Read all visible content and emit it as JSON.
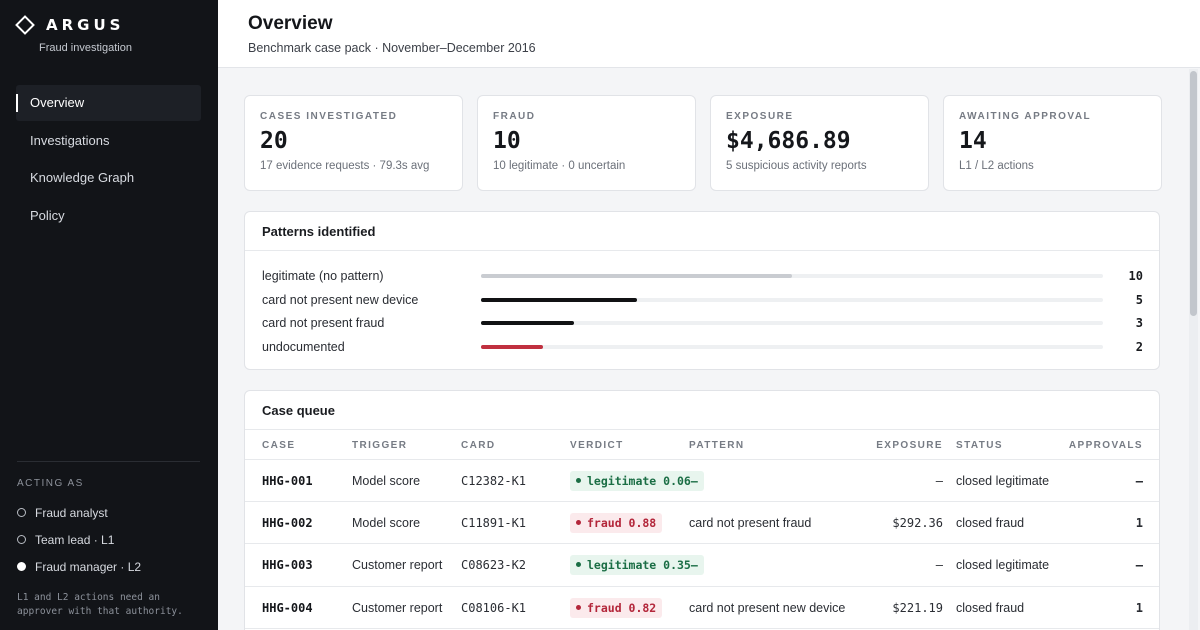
{
  "brand": {
    "name": "ARGUS",
    "subtitle": "Fraud investigation",
    "logo_icon": "diamond-outline-icon"
  },
  "nav": [
    {
      "label": "Overview",
      "active": true
    },
    {
      "label": "Investigations",
      "active": false
    },
    {
      "label": "Knowledge Graph",
      "active": false
    },
    {
      "label": "Policy",
      "active": false
    }
  ],
  "acting_as": {
    "label": "ACTING AS",
    "roles": [
      {
        "label": "Fraud analyst",
        "selected": false
      },
      {
        "label": "Team lead · L1",
        "selected": false
      },
      {
        "label": "Fraud manager · L2",
        "selected": true
      }
    ],
    "note": "L1 and L2 actions need an\napprover with that authority."
  },
  "header": {
    "title": "Overview",
    "subtitle": "Benchmark case pack · November–December 2016"
  },
  "stats": [
    {
      "label": "CASES INVESTIGATED",
      "value": "20",
      "note": "17 evidence requests · 79.3s avg"
    },
    {
      "label": "FRAUD",
      "value": "10",
      "note": "10 legitimate · 0 uncertain"
    },
    {
      "label": "EXPOSURE",
      "value": "$4,686.89",
      "note": "5 suspicious activity reports"
    },
    {
      "label": "AWAITING APPROVAL",
      "value": "14",
      "note": "L1 / L2 actions"
    }
  ],
  "patterns": {
    "title": "Patterns identified",
    "max": 20,
    "items": [
      {
        "label": "legitimate (no pattern)",
        "count": 10,
        "color": "#c9ccd1"
      },
      {
        "label": "card not present new device",
        "count": 5,
        "color": "#111214"
      },
      {
        "label": "card not present fraud",
        "count": 3,
        "color": "#111214"
      },
      {
        "label": "undocumented",
        "count": 2,
        "color": "#c0303f"
      }
    ]
  },
  "queue": {
    "title": "Case queue",
    "columns": {
      "case": "CASE",
      "trigger": "TRIGGER",
      "card": "CARD",
      "verdict": "VERDICT",
      "pattern": "PATTERN",
      "exposure": "EXPOSURE",
      "status": "STATUS",
      "approvals": "APPROVALS"
    },
    "rows": [
      {
        "case": "HHG-001",
        "trigger": "Model score",
        "card": "C12382-K1",
        "verdict": "legitimate 0.06",
        "verdict_kind": "ok",
        "pattern": "—",
        "exposure": "—",
        "status": "closed legitimate",
        "approvals": "–"
      },
      {
        "case": "HHG-002",
        "trigger": "Model score",
        "card": "C11891-K1",
        "verdict": "fraud 0.88",
        "verdict_kind": "bad",
        "pattern": "card not present fraud",
        "exposure": "$292.36",
        "status": "closed fraud",
        "approvals": "1"
      },
      {
        "case": "HHG-003",
        "trigger": "Customer report",
        "card": "C08623-K2",
        "verdict": "legitimate 0.35",
        "verdict_kind": "ok",
        "pattern": "—",
        "exposure": "—",
        "status": "closed legitimate",
        "approvals": "–"
      },
      {
        "case": "HHG-004",
        "trigger": "Customer report",
        "card": "C08106-K1",
        "verdict": "fraud 0.82",
        "verdict_kind": "bad",
        "pattern": "card not present new device",
        "exposure": "$221.19",
        "status": "closed fraud",
        "approvals": "1"
      }
    ]
  }
}
